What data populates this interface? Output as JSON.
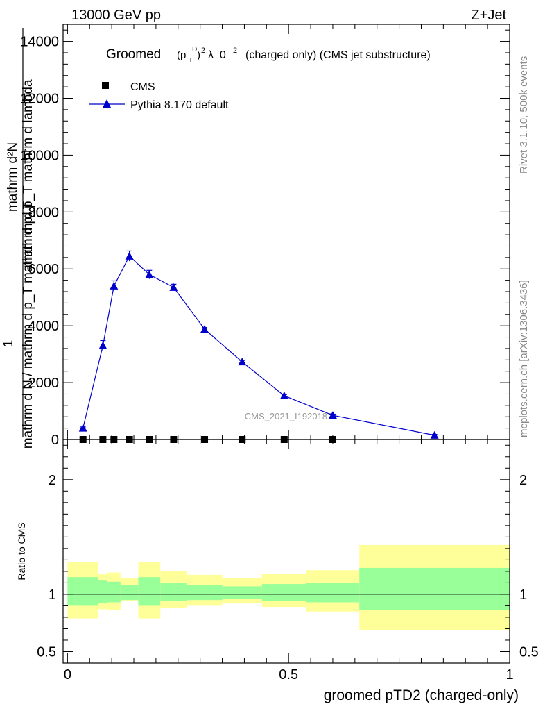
{
  "header": {
    "left": "13000 GeV pp",
    "right": "Z+Jet"
  },
  "side_text": {
    "rivet": "Rivet 3.1.10,  500k events",
    "mcplots": "mcplots.cern.ch [arXiv:1306.3436]"
  },
  "chart_data": [
    {
      "type": "line",
      "title_main": "Groomed",
      "title_formula": "(p",
      "title_formula_sub": "T",
      "title_formula_sup": "D",
      "title_rest": "λ_0",
      "title_sup2": "2",
      "title_tail": "(charged only) (CMS jet substructure)",
      "ylabel_numerator": "mathrm d²N",
      "ylabel_numerator_2": "mathrm d p_T mathrm d lambda",
      "ylabel_one": "1",
      "ylabel_denominator": "mathrm d N / mathrm d p_T mathrm d p_T",
      "watermark": "CMS_2021_I1920187",
      "ylim": [
        0,
        14600
      ],
      "xlim": [
        -0.01,
        1.0
      ],
      "ytick_labels": [
        "0",
        "2000",
        "4000",
        "6000",
        "8000",
        "10000",
        "12000",
        "14000"
      ],
      "yticks": [
        0,
        2000,
        4000,
        6000,
        8000,
        10000,
        12000,
        14000
      ],
      "legend": {
        "position": "top-left",
        "entries": [
          "CMS",
          "Pythia 8.170 default"
        ]
      },
      "series": [
        {
          "name": "CMS",
          "marker": "square",
          "color": "#000000",
          "x": [
            0.035,
            0.08,
            0.105,
            0.14,
            0.185,
            0.24,
            0.31,
            0.395,
            0.49,
            0.6
          ],
          "y": [
            0,
            0,
            0,
            0,
            0,
            0,
            0,
            0,
            0,
            0
          ]
        },
        {
          "name": "Pythia 8.170 default",
          "marker": "triangle",
          "color": "#0000cc",
          "x": [
            0.035,
            0.08,
            0.105,
            0.14,
            0.185,
            0.24,
            0.31,
            0.395,
            0.49,
            0.6,
            0.83
          ],
          "y": [
            400,
            3300,
            5400,
            6450,
            5800,
            5350,
            3880,
            2730,
            1540,
            850,
            150
          ],
          "err": [
            40,
            180,
            180,
            180,
            150,
            110,
            60,
            50,
            40,
            40,
            30
          ]
        }
      ]
    },
    {
      "type": "area",
      "ylabel": "Ratio to CMS",
      "xlabel": "groomed pTD2 (charged-only)",
      "xlim": [
        -0.01,
        1.0
      ],
      "ylim": [
        0.4,
        2.35
      ],
      "xticks": [
        0,
        0.5,
        1
      ],
      "xtick_labels": [
        "0",
        "0.5",
        "1"
      ],
      "yticks": [
        0.5,
        1,
        2
      ],
      "ytick_labels": [
        "0.5",
        "1",
        "2"
      ],
      "bins": [
        {
          "lo": 0.0,
          "hi": 0.07,
          "stat_lo": 0.9,
          "stat_hi": 1.15,
          "tot_lo": 0.79,
          "tot_hi": 1.28
        },
        {
          "lo": 0.07,
          "hi": 0.09,
          "stat_lo": 0.92,
          "stat_hi": 1.12,
          "tot_lo": 0.87,
          "tot_hi": 1.18
        },
        {
          "lo": 0.09,
          "hi": 0.12,
          "stat_lo": 0.93,
          "stat_hi": 1.11,
          "tot_lo": 0.86,
          "tot_hi": 1.19
        },
        {
          "lo": 0.12,
          "hi": 0.16,
          "stat_lo": 0.95,
          "stat_hi": 1.08,
          "tot_lo": 0.94,
          "tot_hi": 1.14
        },
        {
          "lo": 0.16,
          "hi": 0.21,
          "stat_lo": 0.9,
          "stat_hi": 1.15,
          "tot_lo": 0.79,
          "tot_hi": 1.28
        },
        {
          "lo": 0.21,
          "hi": 0.27,
          "stat_lo": 0.94,
          "stat_hi": 1.1,
          "tot_lo": 0.88,
          "tot_hi": 1.2
        },
        {
          "lo": 0.27,
          "hi": 0.35,
          "stat_lo": 0.95,
          "stat_hi": 1.08,
          "tot_lo": 0.9,
          "tot_hi": 1.17
        },
        {
          "lo": 0.35,
          "hi": 0.44,
          "stat_lo": 0.96,
          "stat_hi": 1.07,
          "tot_lo": 0.92,
          "tot_hi": 1.14
        },
        {
          "lo": 0.44,
          "hi": 0.54,
          "stat_lo": 0.94,
          "stat_hi": 1.09,
          "tot_lo": 0.89,
          "tot_hi": 1.18
        },
        {
          "lo": 0.54,
          "hi": 0.66,
          "stat_lo": 0.93,
          "stat_hi": 1.1,
          "tot_lo": 0.85,
          "tot_hi": 1.21
        },
        {
          "lo": 0.66,
          "hi": 1.0,
          "stat_lo": 0.86,
          "stat_hi": 1.23,
          "tot_lo": 0.69,
          "tot_hi": 1.43
        }
      ],
      "stat_color": "#99ff99",
      "tot_color": "#ffff99",
      "ratio_line": 1
    }
  ]
}
